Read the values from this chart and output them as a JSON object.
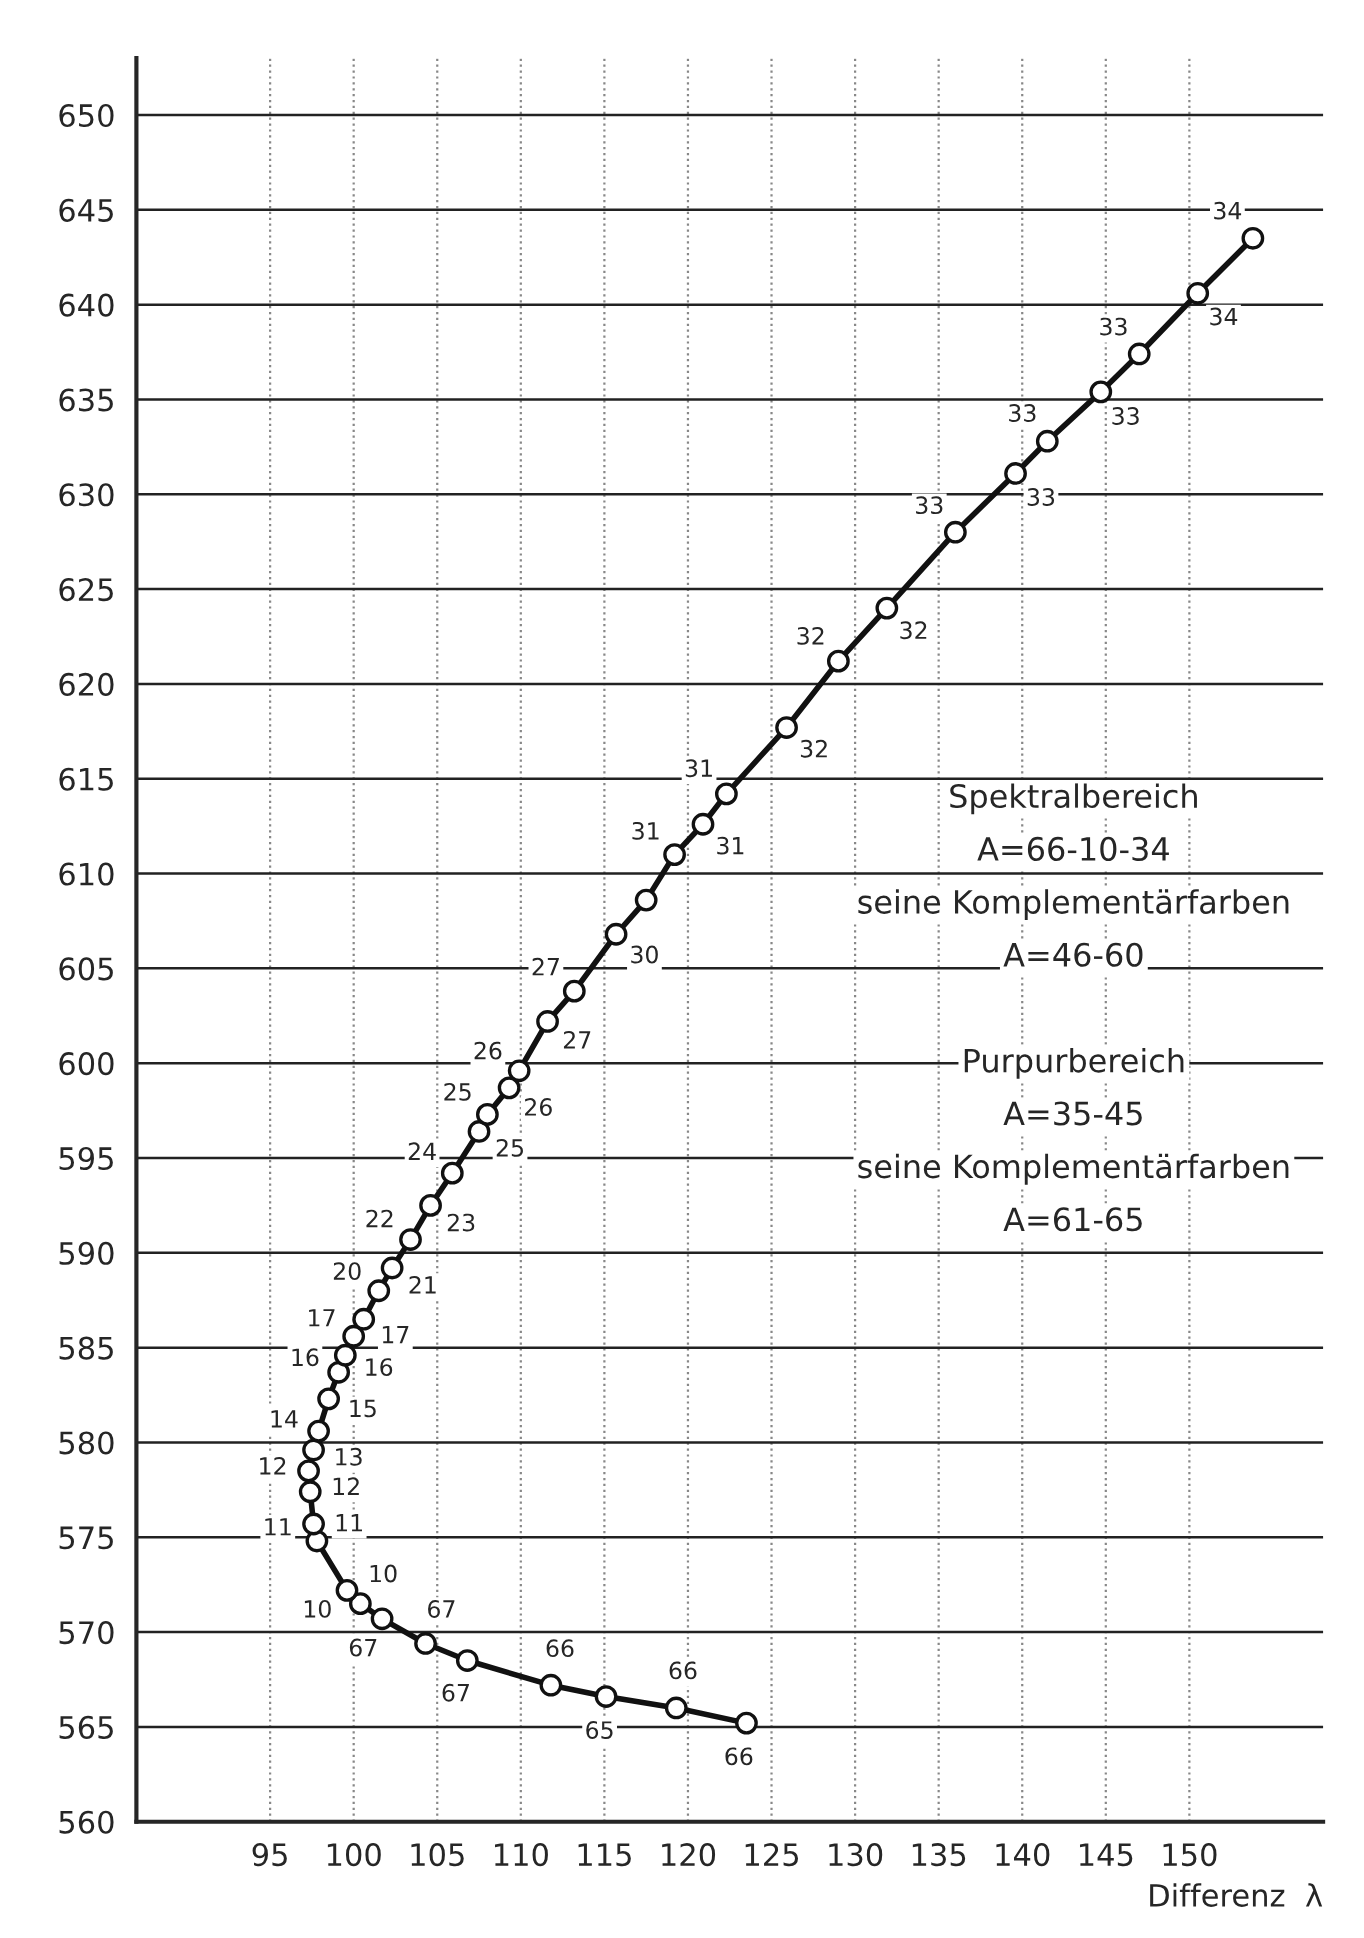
{
  "chart_data": {
    "type": "line",
    "xlabel": "Differenz  λ",
    "x": [
      123.5,
      119.3,
      115.1,
      111.8,
      106.8,
      104.3,
      101.7,
      100.4,
      99.6,
      97.8,
      97.6,
      97.4,
      97.3,
      97.6,
      97.9,
      98.5,
      99.1,
      99.5,
      100.0,
      100.6,
      101.5,
      102.3,
      103.4,
      104.6,
      105.9,
      107.5,
      108.0,
      109.3,
      109.9,
      111.6,
      113.2,
      115.7,
      117.5,
      119.2,
      120.9,
      122.3,
      125.9,
      129.0,
      131.9,
      136.0,
      139.6,
      141.5,
      144.7,
      147.0,
      150.5,
      153.8
    ],
    "series": [
      {
        "color": "#111111",
        "values": [
          565.2,
          566.0,
          566.6,
          567.2,
          568.5,
          569.4,
          570.7,
          571.5,
          572.2,
          574.8,
          575.7,
          577.4,
          578.5,
          579.6,
          580.6,
          582.3,
          583.7,
          584.6,
          585.6,
          586.5,
          588.0,
          589.2,
          590.7,
          592.5,
          594.2,
          596.4,
          597.3,
          598.7,
          599.6,
          602.2,
          603.8,
          606.8,
          608.6,
          611.0,
          612.6,
          614.2,
          617.7,
          621.2,
          624.0,
          628.0,
          631.1,
          632.8,
          635.4,
          637.4,
          640.6,
          643.5
        ]
      }
    ],
    "marker": "circle",
    "line_style": "solid",
    "grid": true,
    "legend": false,
    "xlim": [
      87,
      158
    ],
    "ylim": [
      560,
      653
    ],
    "xticks": [
      95,
      100,
      105,
      110,
      115,
      120,
      125,
      130,
      135,
      140,
      145,
      150
    ],
    "yticks": [
      560,
      565,
      570,
      575,
      580,
      585,
      590,
      595,
      600,
      605,
      610,
      615,
      620,
      625,
      630,
      635,
      640,
      645,
      650
    ],
    "annotations": [
      {
        "text": "66",
        "x": 123.5,
        "y": 565.2
      },
      {
        "text": "66",
        "x": 119.3,
        "y": 566.0
      },
      {
        "text": "65",
        "x": 115.1,
        "y": 566.6
      },
      {
        "text": "66",
        "x": 111.8,
        "y": 567.2
      },
      {
        "text": "67",
        "x": 106.8,
        "y": 568.5
      },
      {
        "text": "67",
        "x": 104.3,
        "y": 569.4
      },
      {
        "text": "67",
        "x": 101.7,
        "y": 570.7
      },
      {
        "text": "10",
        "x": 100.4,
        "y": 571.5
      },
      {
        "text": "10",
        "x": 99.6,
        "y": 572.2
      },
      {
        "text": "11",
        "x": 97.8,
        "y": 574.8
      },
      {
        "text": "11",
        "x": 97.6,
        "y": 575.7
      },
      {
        "text": "12",
        "x": 97.4,
        "y": 577.4
      },
      {
        "text": "12",
        "x": 97.3,
        "y": 578.5
      },
      {
        "text": "13",
        "x": 97.6,
        "y": 579.6
      },
      {
        "text": "14",
        "x": 97.9,
        "y": 580.6
      },
      {
        "text": "15",
        "x": 98.5,
        "y": 582.3
      },
      {
        "text": "16",
        "x": 99.1,
        "y": 583.7
      },
      {
        "text": "16",
        "x": 99.5,
        "y": 584.6
      },
      {
        "text": "17",
        "x": 100.0,
        "y": 585.6
      },
      {
        "text": "17",
        "x": 100.6,
        "y": 586.5
      },
      {
        "text": "20",
        "x": 101.5,
        "y": 588.0
      },
      {
        "text": "21",
        "x": 102.3,
        "y": 589.2
      },
      {
        "text": "22",
        "x": 103.4,
        "y": 590.7
      },
      {
        "text": "23",
        "x": 104.6,
        "y": 592.5
      },
      {
        "text": "24",
        "x": 105.9,
        "y": 594.2
      },
      {
        "text": "25",
        "x": 107.5,
        "y": 596.4
      },
      {
        "text": "25",
        "x": 108.0,
        "y": 597.3
      },
      {
        "text": "26",
        "x": 109.3,
        "y": 598.7
      },
      {
        "text": "26",
        "x": 109.9,
        "y": 599.6
      },
      {
        "text": "27",
        "x": 111.6,
        "y": 602.2
      },
      {
        "text": "27",
        "x": 113.2,
        "y": 603.8
      },
      {
        "text": "30",
        "x": 115.7,
        "y": 606.8
      },
      {
        "text": "31",
        "x": 119.2,
        "y": 611.0
      },
      {
        "text": "31",
        "x": 120.9,
        "y": 612.6
      },
      {
        "text": "31",
        "x": 122.3,
        "y": 614.2
      },
      {
        "text": "32",
        "x": 125.9,
        "y": 617.7
      },
      {
        "text": "32",
        "x": 129.0,
        "y": 621.2
      },
      {
        "text": "32",
        "x": 131.9,
        "y": 624.0
      },
      {
        "text": "33",
        "x": 136.0,
        "y": 628.0
      },
      {
        "text": "33",
        "x": 139.6,
        "y": 631.1
      },
      {
        "text": "33",
        "x": 141.5,
        "y": 632.8
      },
      {
        "text": "33",
        "x": 144.7,
        "y": 635.4
      },
      {
        "text": "33",
        "x": 147.0,
        "y": 637.4
      },
      {
        "text": "34",
        "x": 150.5,
        "y": 640.6
      },
      {
        "text": "34",
        "x": 153.8,
        "y": 643.5
      },
      "Spektralbereich",
      "A=66-10-34",
      "seine Komplementärfarben",
      "A=46-60",
      "Purpurbereich",
      "A=35-45",
      "seine Komplementärfarben",
      "A=61-65"
    ]
  }
}
